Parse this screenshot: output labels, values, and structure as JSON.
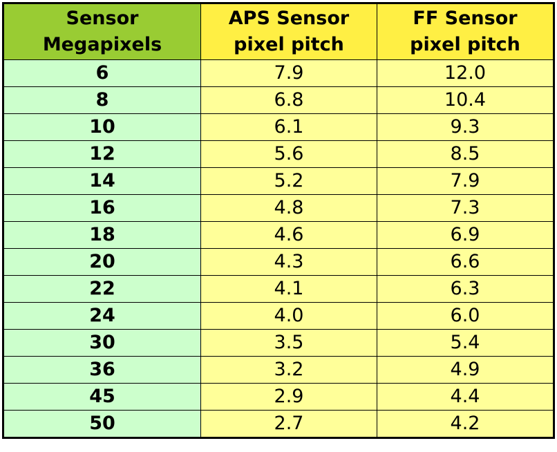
{
  "table": {
    "headers": [
      [
        "Sensor",
        "Megapixels"
      ],
      [
        "APS Sensor",
        "pixel pitch"
      ],
      [
        "FF Sensor",
        "pixel pitch"
      ]
    ],
    "rows": [
      [
        "6",
        "7.9",
        "12.0"
      ],
      [
        "8",
        "6.8",
        "10.4"
      ],
      [
        "10",
        "6.1",
        "9.3"
      ],
      [
        "12",
        "5.6",
        "8.5"
      ],
      [
        "14",
        "5.2",
        "7.9"
      ],
      [
        "16",
        "4.8",
        "7.3"
      ],
      [
        "18",
        "4.6",
        "6.9"
      ],
      [
        "20",
        "4.3",
        "6.6"
      ],
      [
        "22",
        "4.1",
        "6.3"
      ],
      [
        "24",
        "4.0",
        "6.0"
      ],
      [
        "30",
        "3.5",
        "5.4"
      ],
      [
        "36",
        "3.2",
        "4.9"
      ],
      [
        "45",
        "2.9",
        "4.4"
      ],
      [
        "50",
        "2.7",
        "4.2"
      ]
    ]
  }
}
